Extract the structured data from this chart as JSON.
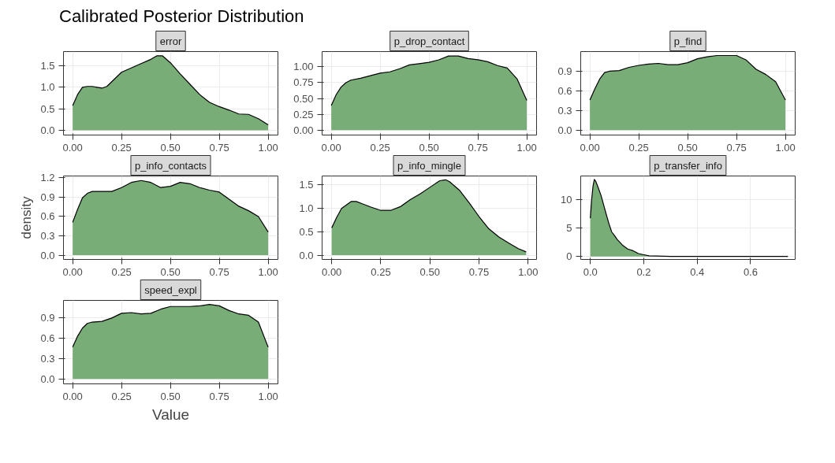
{
  "chart_data": [
    {
      "type": "area",
      "title": "error",
      "annotations": [
        "Calibrated Posterior Distribution"
      ],
      "color": "#78ad78",
      "grid": true,
      "x": [
        0,
        0.025,
        0.05,
        0.075,
        0.1,
        0.125,
        0.15,
        0.175,
        0.2,
        0.25,
        0.3,
        0.35,
        0.4,
        0.43,
        0.46,
        0.5,
        0.55,
        0.6,
        0.65,
        0.7,
        0.75,
        0.8,
        0.85,
        0.9,
        0.95,
        1.0
      ],
      "values": [
        0.57,
        0.83,
        1.0,
        1.02,
        1.02,
        1.0,
        0.98,
        1.02,
        1.13,
        1.35,
        1.45,
        1.55,
        1.65,
        1.73,
        1.73,
        1.57,
        1.31,
        1.07,
        0.83,
        0.65,
        0.55,
        0.47,
        0.38,
        0.37,
        0.27,
        0.13
      ],
      "xlim": [
        -0.047,
        1.05
      ],
      "ylim": [
        -0.11,
        1.83
      ],
      "xticks": [
        {
          "value": 0,
          "label": "0.00"
        },
        {
          "value": 0.25,
          "label": "0.25"
        },
        {
          "value": 0.5,
          "label": "0.50"
        },
        {
          "value": 0.75,
          "label": "0.75"
        },
        {
          "value": 1,
          "label": "1.00"
        }
      ],
      "yticks": [
        {
          "value": 0,
          "label": "0.0"
        },
        {
          "value": 0.5,
          "label": "0.5"
        },
        {
          "value": 1,
          "label": "1.0"
        },
        {
          "value": 1.5,
          "label": "1.5"
        }
      ]
    },
    {
      "type": "area",
      "title": "p_drop_contact",
      "color": "#78ad78",
      "grid": true,
      "x": [
        0,
        0.025,
        0.05,
        0.075,
        0.1,
        0.15,
        0.2,
        0.25,
        0.3,
        0.35,
        0.4,
        0.45,
        0.5,
        0.55,
        0.6,
        0.65,
        0.7,
        0.75,
        0.8,
        0.85,
        0.9,
        0.95,
        1.0
      ],
      "values": [
        0.39,
        0.56,
        0.68,
        0.75,
        0.79,
        0.82,
        0.86,
        0.9,
        0.92,
        0.97,
        1.03,
        1.05,
        1.07,
        1.11,
        1.17,
        1.17,
        1.13,
        1.11,
        1.08,
        1.02,
        0.98,
        0.81,
        0.47
      ],
      "xlim": [
        -0.047,
        1.05
      ],
      "ylim": [
        -0.077,
        1.24
      ],
      "xticks": [
        {
          "value": 0,
          "label": "0.00"
        },
        {
          "value": 0.25,
          "label": "0.25"
        },
        {
          "value": 0.5,
          "label": "0.50"
        },
        {
          "value": 0.75,
          "label": "0.75"
        },
        {
          "value": 1,
          "label": "1.00"
        }
      ],
      "yticks": [
        {
          "value": 0,
          "label": "0.00"
        },
        {
          "value": 0.25,
          "label": "0.25"
        },
        {
          "value": 0.5,
          "label": "0.50"
        },
        {
          "value": 0.75,
          "label": "0.75"
        },
        {
          "value": 1,
          "label": "1.00"
        }
      ]
    },
    {
      "type": "area",
      "title": "p_find",
      "color": "#78ad78",
      "grid": true,
      "x": [
        0,
        0.025,
        0.05,
        0.075,
        0.1,
        0.15,
        0.2,
        0.25,
        0.3,
        0.35,
        0.4,
        0.45,
        0.5,
        0.55,
        0.6,
        0.65,
        0.7,
        0.75,
        0.8,
        0.85,
        0.9,
        0.95,
        1.0
      ],
      "values": [
        0.46,
        0.63,
        0.78,
        0.88,
        0.9,
        0.91,
        0.96,
        0.99,
        1.01,
        1.02,
        1.0,
        1.0,
        1.03,
        1.09,
        1.12,
        1.14,
        1.14,
        1.14,
        1.07,
        0.93,
        0.85,
        0.74,
        0.46
      ],
      "xlim": [
        -0.047,
        1.05
      ],
      "ylim": [
        -0.074,
        1.2
      ],
      "xticks": [
        {
          "value": 0,
          "label": "0.00"
        },
        {
          "value": 0.25,
          "label": "0.25"
        },
        {
          "value": 0.5,
          "label": "0.50"
        },
        {
          "value": 0.75,
          "label": "0.75"
        },
        {
          "value": 1,
          "label": "1.00"
        }
      ],
      "yticks": [
        {
          "value": 0,
          "label": "0.0"
        },
        {
          "value": 0.3,
          "label": "0.3"
        },
        {
          "value": 0.6,
          "label": "0.6"
        },
        {
          "value": 0.9,
          "label": "0.9"
        }
      ]
    },
    {
      "type": "area",
      "title": "p_info_contacts",
      "ylabel": "density",
      "color": "#78ad78",
      "grid": true,
      "x": [
        0,
        0.025,
        0.05,
        0.075,
        0.1,
        0.15,
        0.2,
        0.25,
        0.3,
        0.35,
        0.4,
        0.45,
        0.5,
        0.55,
        0.6,
        0.65,
        0.7,
        0.75,
        0.8,
        0.85,
        0.9,
        0.95,
        1.0
      ],
      "values": [
        0.51,
        0.71,
        0.89,
        0.96,
        0.99,
        0.99,
        0.99,
        1.05,
        1.13,
        1.16,
        1.13,
        1.05,
        1.07,
        1.13,
        1.11,
        1.05,
        1.01,
        0.98,
        0.87,
        0.76,
        0.69,
        0.6,
        0.36
      ],
      "xlim": [
        -0.047,
        1.05
      ],
      "ylim": [
        -0.067,
        1.23
      ],
      "xticks": [
        {
          "value": 0,
          "label": "0.00"
        },
        {
          "value": 0.25,
          "label": "0.25"
        },
        {
          "value": 0.5,
          "label": "0.50"
        },
        {
          "value": 0.75,
          "label": "0.75"
        },
        {
          "value": 1,
          "label": "1.00"
        }
      ],
      "yticks": [
        {
          "value": 0,
          "label": "0.0"
        },
        {
          "value": 0.3,
          "label": "0.3"
        },
        {
          "value": 0.6,
          "label": "0.6"
        },
        {
          "value": 0.9,
          "label": "0.9"
        },
        {
          "value": 1.2,
          "label": "1.2"
        }
      ]
    },
    {
      "type": "area",
      "title": "p_info_mingle",
      "color": "#78ad78",
      "grid": true,
      "x": [
        0,
        0.025,
        0.05,
        0.1,
        0.125,
        0.15,
        0.2,
        0.25,
        0.3,
        0.35,
        0.4,
        0.45,
        0.5,
        0.55,
        0.58,
        0.6,
        0.65,
        0.7,
        0.75,
        0.8,
        0.85,
        0.9,
        0.95,
        0.99
      ],
      "values": [
        0.58,
        0.8,
        0.99,
        1.14,
        1.14,
        1.1,
        1.02,
        0.95,
        0.95,
        1.03,
        1.18,
        1.3,
        1.44,
        1.58,
        1.6,
        1.56,
        1.38,
        1.11,
        0.82,
        0.56,
        0.39,
        0.26,
        0.14,
        0.07
      ],
      "xlim": [
        -0.049,
        1.043
      ],
      "ylim": [
        -0.09,
        1.68
      ],
      "xticks": [
        {
          "value": 0,
          "label": "0.00"
        },
        {
          "value": 0.25,
          "label": "0.25"
        },
        {
          "value": 0.5,
          "label": "0.50"
        },
        {
          "value": 0.75,
          "label": "0.75"
        },
        {
          "value": 1,
          "label": "1.00"
        }
      ],
      "yticks": [
        {
          "value": 0,
          "label": "0.0"
        },
        {
          "value": 0.5,
          "label": "0.5"
        },
        {
          "value": 1,
          "label": "1.0"
        },
        {
          "value": 1.5,
          "label": "1.5"
        }
      ]
    },
    {
      "type": "area",
      "title": "p_transfer_info",
      "color": "#78ad78",
      "grid": true,
      "x": [
        0,
        0.005,
        0.01,
        0.015,
        0.02,
        0.03,
        0.04,
        0.05,
        0.06,
        0.07,
        0.08,
        0.09,
        0.1,
        0.12,
        0.14,
        0.16,
        0.18,
        0.2,
        0.22,
        0.3,
        0.4,
        0.5,
        0.6,
        0.74
      ],
      "values": [
        6.7,
        10,
        12.3,
        13.5,
        13.2,
        12,
        10.7,
        9,
        7.3,
        5.7,
        4.3,
        3.7,
        3,
        2,
        1.3,
        1,
        0.5,
        0.3,
        0.1,
        0,
        0,
        0,
        0,
        0
      ],
      "xlim": [
        -0.036,
        0.767
      ],
      "ylim": [
        -0.53,
        14.1
      ],
      "xticks": [
        {
          "value": 0,
          "label": "0.0"
        },
        {
          "value": 0.2,
          "label": "0.2"
        },
        {
          "value": 0.4,
          "label": "0.4"
        },
        {
          "value": 0.6,
          "label": "0.6"
        }
      ],
      "yticks": [
        0,
        5,
        10
      ]
    },
    {
      "type": "area",
      "title": "speed_expl",
      "xlabel": "Value",
      "color": "#78ad78",
      "grid": true,
      "x": [
        0,
        0.025,
        0.05,
        0.075,
        0.1,
        0.15,
        0.2,
        0.25,
        0.3,
        0.35,
        0.4,
        0.45,
        0.5,
        0.55,
        0.6,
        0.65,
        0.7,
        0.75,
        0.8,
        0.85,
        0.9,
        0.95,
        1.0
      ],
      "values": [
        0.47,
        0.63,
        0.75,
        0.82,
        0.84,
        0.85,
        0.9,
        0.97,
        0.98,
        0.96,
        0.97,
        1.03,
        1.07,
        1.07,
        1.07,
        1.08,
        1.1,
        1.08,
        1.01,
        0.96,
        0.94,
        0.84,
        0.47
      ],
      "xlim": [
        -0.047,
        1.05
      ],
      "ylim": [
        -0.072,
        1.16
      ],
      "xticks": [
        {
          "value": 0,
          "label": "0.00"
        },
        {
          "value": 0.25,
          "label": "0.25"
        },
        {
          "value": 0.5,
          "label": "0.50"
        },
        {
          "value": 0.75,
          "label": "0.75"
        },
        {
          "value": 1,
          "label": "1.00"
        }
      ],
      "yticks": [
        {
          "value": 0,
          "label": "0.0"
        },
        {
          "value": 0.3,
          "label": "0.3"
        },
        {
          "value": 0.6,
          "label": "0.6"
        },
        {
          "value": 0.9,
          "label": "0.9"
        }
      ]
    }
  ]
}
